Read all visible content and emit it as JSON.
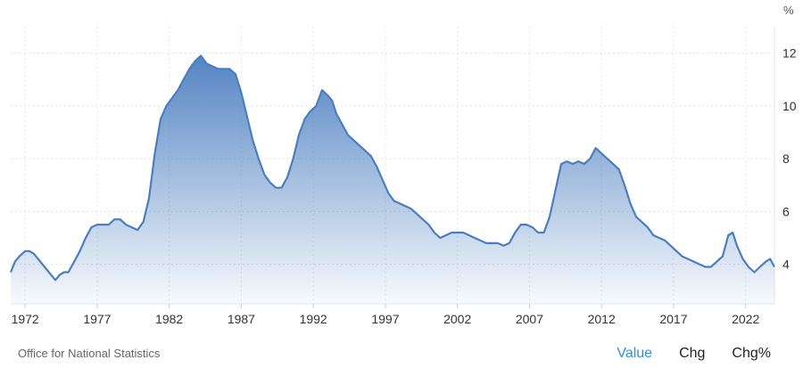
{
  "chart_data": {
    "type": "area",
    "unit": "%",
    "y_ticks": [
      4,
      6,
      8,
      10,
      12
    ],
    "x_ticks": [
      1972,
      1977,
      1982,
      1987,
      1992,
      1997,
      2002,
      2007,
      2012,
      2017,
      2022
    ],
    "xlim": [
      1971,
      2024
    ],
    "ylim": [
      2.5,
      13.0
    ],
    "grid": true,
    "series_color": "#4a7ebf",
    "x": [
      1971.0,
      1971.3,
      1971.6,
      1972.0,
      1972.3,
      1972.6,
      1972.9,
      1973.2,
      1973.5,
      1973.8,
      1974.1,
      1974.4,
      1974.7,
      1975.0,
      1975.4,
      1975.8,
      1976.2,
      1976.6,
      1977.0,
      1977.4,
      1977.8,
      1978.2,
      1978.6,
      1979.0,
      1979.4,
      1979.8,
      1980.2,
      1980.6,
      1981.0,
      1981.4,
      1981.8,
      1982.2,
      1982.6,
      1983.0,
      1983.4,
      1983.8,
      1984.2,
      1984.6,
      1985.0,
      1985.4,
      1985.8,
      1986.2,
      1986.6,
      1987.0,
      1987.4,
      1987.8,
      1988.2,
      1988.6,
      1989.0,
      1989.4,
      1989.8,
      1990.2,
      1990.6,
      1991.0,
      1991.4,
      1991.8,
      1992.2,
      1992.6,
      1993.0,
      1993.3,
      1993.6,
      1994.0,
      1994.4,
      1994.8,
      1995.2,
      1995.6,
      1996.0,
      1996.4,
      1996.8,
      1997.2,
      1997.6,
      1998.0,
      1998.4,
      1998.8,
      1999.2,
      1999.6,
      2000.0,
      2000.4,
      2000.8,
      2001.2,
      2001.6,
      2002.0,
      2002.4,
      2002.8,
      2003.2,
      2003.6,
      2004.0,
      2004.4,
      2004.8,
      2005.2,
      2005.6,
      2006.0,
      2006.4,
      2006.8,
      2007.2,
      2007.6,
      2008.0,
      2008.4,
      2008.8,
      2009.2,
      2009.6,
      2010.0,
      2010.4,
      2010.8,
      2011.2,
      2011.6,
      2012.0,
      2012.4,
      2012.8,
      2013.2,
      2013.6,
      2014.0,
      2014.4,
      2014.8,
      2015.2,
      2015.6,
      2016.0,
      2016.4,
      2016.8,
      2017.2,
      2017.6,
      2018.0,
      2018.4,
      2018.8,
      2019.2,
      2019.6,
      2020.0,
      2020.4,
      2020.8,
      2021.1,
      2021.4,
      2021.8,
      2022.2,
      2022.6,
      2023.0,
      2023.4,
      2023.7,
      2024.0
    ],
    "y": [
      3.7,
      4.1,
      4.3,
      4.5,
      4.5,
      4.4,
      4.2,
      4.0,
      3.8,
      3.6,
      3.4,
      3.6,
      3.7,
      3.7,
      4.1,
      4.5,
      5.0,
      5.4,
      5.5,
      5.5,
      5.5,
      5.7,
      5.7,
      5.5,
      5.4,
      5.3,
      5.6,
      6.5,
      8.2,
      9.5,
      10.0,
      10.3,
      10.6,
      11.0,
      11.4,
      11.7,
      11.9,
      11.6,
      11.5,
      11.4,
      11.4,
      11.4,
      11.2,
      10.5,
      9.6,
      8.7,
      8.0,
      7.4,
      7.1,
      6.9,
      6.9,
      7.3,
      8.0,
      8.9,
      9.5,
      9.8,
      10.0,
      10.6,
      10.4,
      10.2,
      9.7,
      9.3,
      8.9,
      8.7,
      8.5,
      8.3,
      8.1,
      7.7,
      7.2,
      6.7,
      6.4,
      6.3,
      6.2,
      6.1,
      5.9,
      5.7,
      5.5,
      5.2,
      5.0,
      5.1,
      5.2,
      5.2,
      5.2,
      5.1,
      5.0,
      4.9,
      4.8,
      4.8,
      4.8,
      4.7,
      4.8,
      5.2,
      5.5,
      5.5,
      5.4,
      5.2,
      5.2,
      5.8,
      6.8,
      7.8,
      7.9,
      7.8,
      7.9,
      7.8,
      8.0,
      8.4,
      8.2,
      8.0,
      7.8,
      7.6,
      7.0,
      6.3,
      5.8,
      5.6,
      5.4,
      5.1,
      5.0,
      4.9,
      4.7,
      4.5,
      4.3,
      4.2,
      4.1,
      4.0,
      3.9,
      3.9,
      4.1,
      4.3,
      5.1,
      5.2,
      4.7,
      4.2,
      3.9,
      3.7,
      3.9,
      4.1,
      4.2,
      3.9
    ]
  },
  "footer": {
    "source": "Office for National Statistics",
    "tabs": [
      "Value",
      "Chg",
      "Chg%"
    ]
  }
}
